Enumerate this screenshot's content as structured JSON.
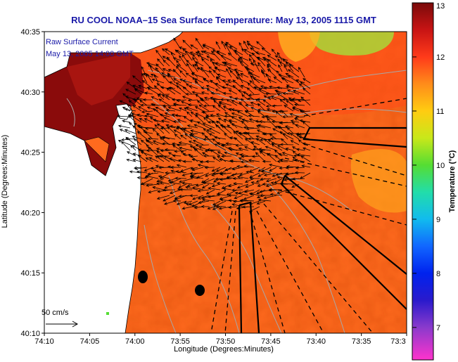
{
  "title": "RU COOL  NOAA–15  Sea Surface Temperature:  May 13, 2005 1115 GMT",
  "overlay": {
    "line1": "Raw Surface Current",
    "line2": "May 13, 2005 14:00 GMT",
    "scale_label": "50 cm/s",
    "scale_value_cms": 50
  },
  "axes": {
    "xlabel": "Longitude (Degrees:Minutes)",
    "ylabel": "Latitude (Degrees:Minutes)",
    "x_ticks": [
      {
        "value": -74.1667,
        "label": "74:10"
      },
      {
        "value": -74.0833,
        "label": "74:05"
      },
      {
        "value": -74.0,
        "label": "74:00"
      },
      {
        "value": -73.9167,
        "label": "73:55"
      },
      {
        "value": -73.8333,
        "label": "73:50"
      },
      {
        "value": -73.75,
        "label": "73:45"
      },
      {
        "value": -73.6667,
        "label": "73:40"
      },
      {
        "value": -73.5833,
        "label": "73:35"
      },
      {
        "value": -73.5,
        "label": "73:3"
      }
    ],
    "y_ticks": [
      {
        "value": 40.5833,
        "label": "40:35"
      },
      {
        "value": 40.5,
        "label": "40:30"
      },
      {
        "value": 40.4167,
        "label": "40:25"
      },
      {
        "value": 40.3333,
        "label": "40:20"
      },
      {
        "value": 40.25,
        "label": "40:15"
      },
      {
        "value": 40.1667,
        "label": "40:10"
      }
    ],
    "xlim": [
      -74.1667,
      -73.5
    ],
    "ylim": [
      40.1667,
      40.5833
    ]
  },
  "colorbar": {
    "label": "Temperature (°C)",
    "range": [
      6.4,
      13
    ],
    "ticks": [
      {
        "value": 13,
        "label": "13"
      },
      {
        "value": 12,
        "label": "12"
      },
      {
        "value": 11,
        "label": "11"
      },
      {
        "value": 10,
        "label": "10"
      },
      {
        "value": 9,
        "label": "9"
      },
      {
        "value": 8,
        "label": "8"
      },
      {
        "value": 7,
        "label": "7"
      }
    ],
    "stops": [
      {
        "value": 13,
        "color": "#7a0a0a"
      },
      {
        "value": 12.5,
        "color": "#c81414"
      },
      {
        "value": 12,
        "color": "#ff3a1a"
      },
      {
        "value": 11.5,
        "color": "#ff8c1a"
      },
      {
        "value": 11,
        "color": "#ffcc11"
      },
      {
        "value": 10.5,
        "color": "#c8e81a"
      },
      {
        "value": 10,
        "color": "#55dd33"
      },
      {
        "value": 9.5,
        "color": "#22ddaa"
      },
      {
        "value": 9,
        "color": "#11bbee"
      },
      {
        "value": 8.5,
        "color": "#1166ff"
      },
      {
        "value": 8,
        "color": "#0022ee"
      },
      {
        "value": 7.5,
        "color": "#2a1acc"
      },
      {
        "value": 7,
        "color": "#8a3acc"
      },
      {
        "value": 6.4,
        "color": "#ff33cc"
      }
    ]
  },
  "colors": {
    "title": "#1a1aa8",
    "sea_base": "#ff6a1e",
    "land": "#ffffff",
    "warm_patch": "#8a0b0b",
    "cool_patch": "#a8d838",
    "contour": "#a8a8a8",
    "vectors": "#000000"
  }
}
